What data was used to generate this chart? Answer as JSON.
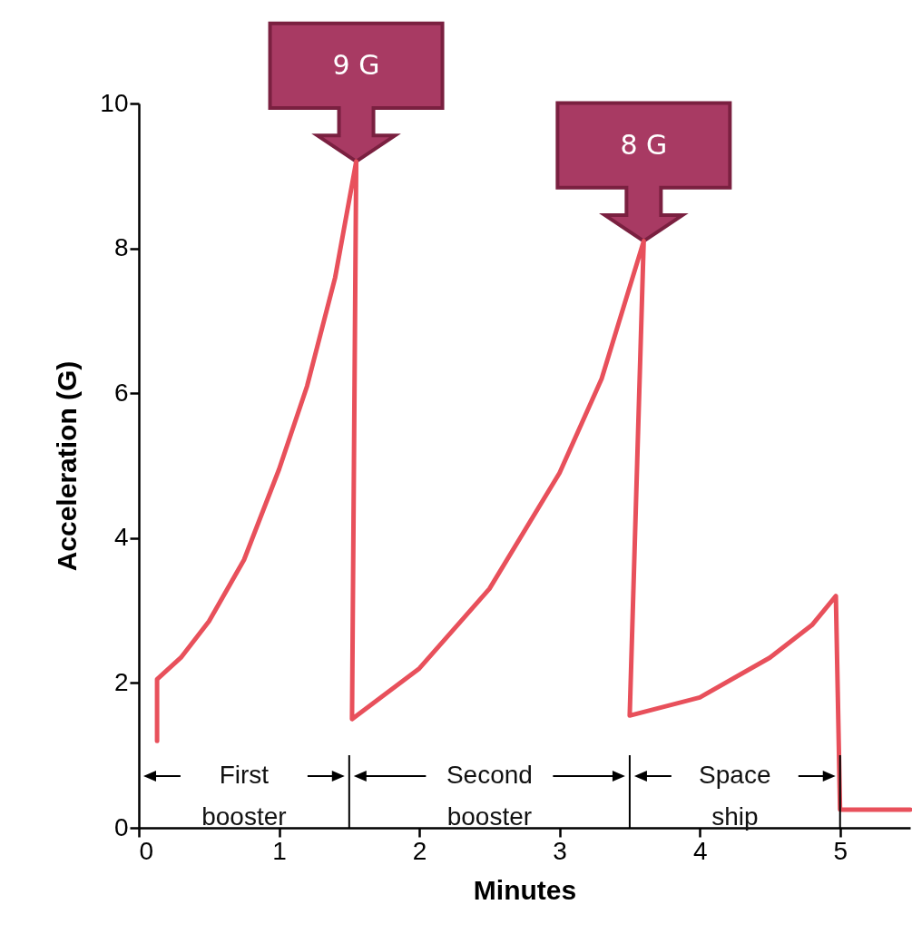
{
  "chart_data": {
    "type": "line",
    "xlabel": "Minutes",
    "ylabel": "Acceleration (G)",
    "x": [
      0.13,
      0.13,
      0.3,
      0.5,
      0.75,
      1.0,
      1.2,
      1.4,
      1.55,
      1.52,
      2.0,
      2.5,
      3.0,
      3.3,
      3.6,
      3.5,
      4.0,
      4.5,
      4.8,
      4.97,
      5.0,
      5.5
    ],
    "series": [
      {
        "color": "#e8505b",
        "values": [
          1.2,
          2.05,
          2.35,
          2.85,
          3.7,
          4.95,
          6.1,
          7.6,
          9.2,
          1.5,
          2.2,
          3.3,
          4.9,
          6.2,
          8.1,
          1.55,
          1.8,
          2.35,
          2.8,
          3.2,
          0.25,
          0.25
        ]
      }
    ],
    "xlim": [
      0,
      5.5
    ],
    "ylim": [
      0,
      10
    ],
    "xticks": [
      0,
      1,
      2,
      3,
      4,
      5
    ],
    "yticks": [
      0,
      2,
      4,
      6,
      8,
      10
    ],
    "annotations": [
      {
        "text": "9 G",
        "x": 1.55,
        "y": 9.2
      },
      {
        "text": "8 G",
        "x": 3.6,
        "y": 8.1
      },
      "First booster",
      "Second booster",
      "Space ship"
    ],
    "ref_lines": [
      {
        "axis": "x",
        "value": 1.5
      },
      {
        "axis": "x",
        "value": 3.5
      },
      {
        "axis": "x",
        "value": 5
      }
    ]
  }
}
